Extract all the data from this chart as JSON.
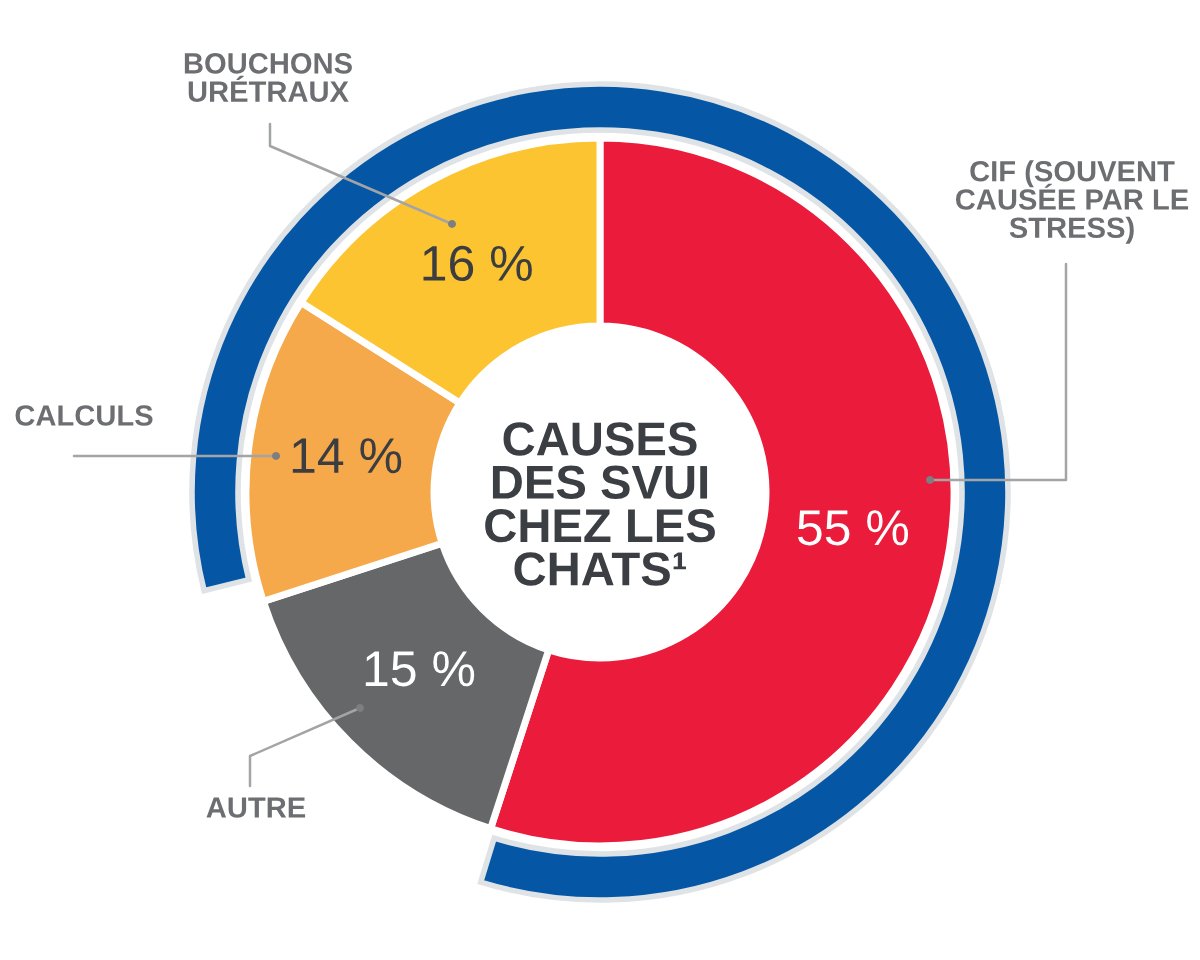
{
  "chart_data": {
    "type": "donut",
    "title": "CAUSES\nDES SVUI\nCHEZ LES\nCHATS¹",
    "categories": [
      "CIF (SOUVENT\nCAUSÉE PAR LE\nSTRESS)",
      "AUTRE",
      "CALCULS",
      "BOUCHONS\nURÉTRAUX"
    ],
    "values": [
      55,
      15,
      14,
      16
    ],
    "colors": [
      "#eb1b3c",
      "#666769",
      "#f5a94b",
      "#fcc431"
    ],
    "value_labels": [
      "55 %",
      "15 %",
      "14 %",
      "16 %"
    ]
  }
}
